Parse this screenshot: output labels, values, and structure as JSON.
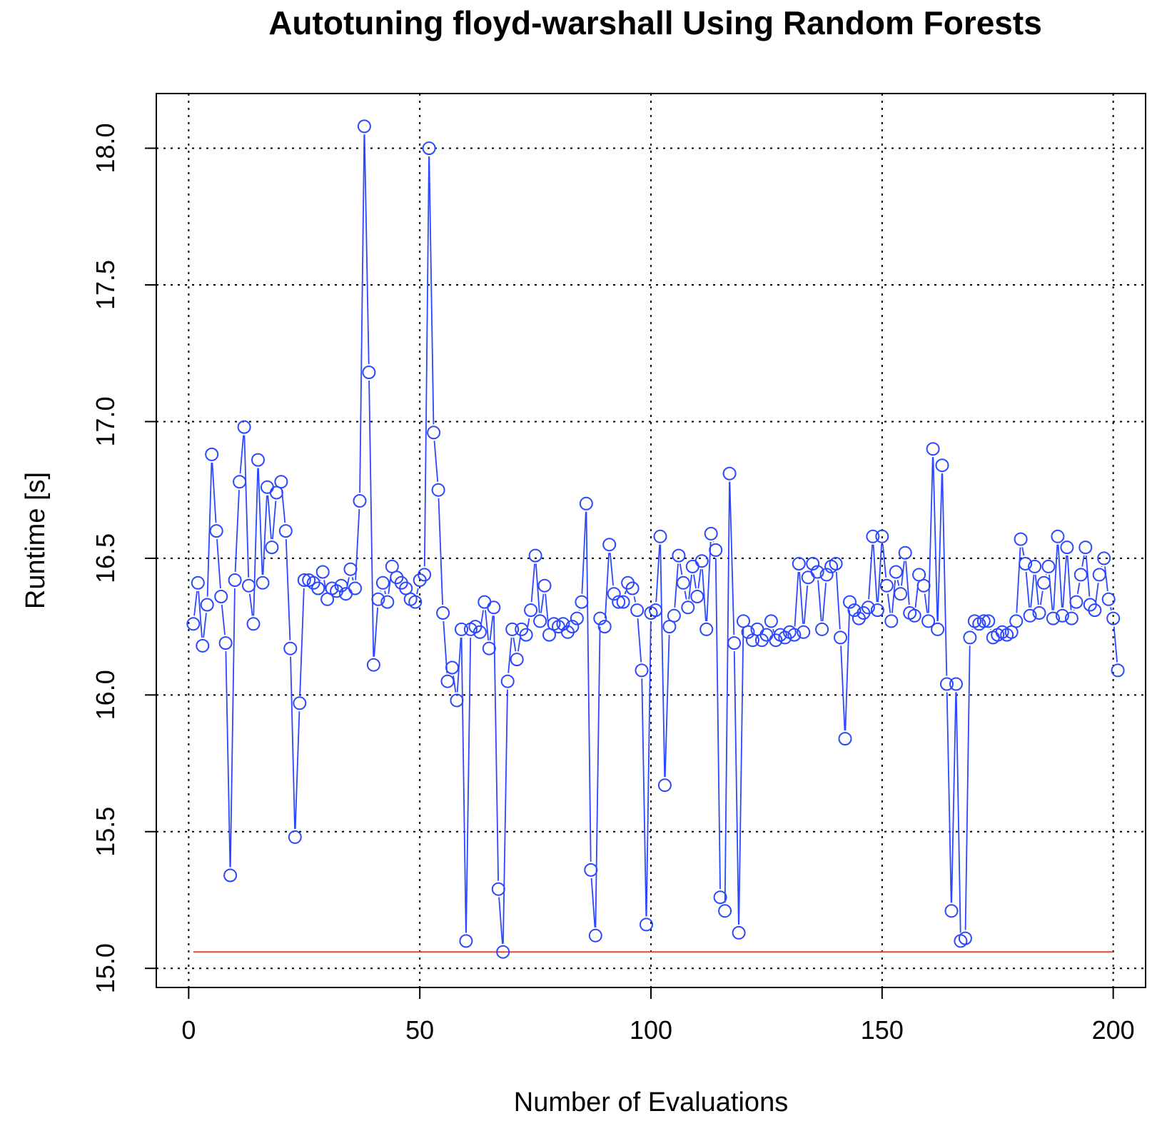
{
  "chart_data": {
    "type": "line",
    "title": "Autotuning floyd-warshall Using Random Forests",
    "xlabel": "Number of Evaluations",
    "ylabel": "Runtime [s]",
    "xlim": [
      -7,
      207
    ],
    "ylim": [
      14.93,
      18.2
    ],
    "x_ticks": [
      0,
      50,
      100,
      150,
      200
    ],
    "x_tick_labels": [
      "0",
      "50",
      "100",
      "150",
      "200"
    ],
    "y_ticks": [
      15.0,
      15.5,
      16.0,
      16.5,
      17.0,
      17.5,
      18.0
    ],
    "y_tick_labels": [
      "15.0",
      "15.5",
      "16.0",
      "16.5",
      "17.0",
      "17.5",
      "18.0"
    ],
    "grid": true,
    "legend": "none",
    "series": [
      {
        "color": "#2b47ff",
        "marker": "circle-open",
        "line_style": "connected-gapped",
        "x_start": 1,
        "x_step": 1,
        "values": [
          16.26,
          16.41,
          16.18,
          16.33,
          16.88,
          16.6,
          16.36,
          16.19,
          15.34,
          16.42,
          16.78,
          16.98,
          16.4,
          16.26,
          16.86,
          16.41,
          16.76,
          16.54,
          16.74,
          16.78,
          16.6,
          16.17,
          15.48,
          15.97,
          16.42,
          16.42,
          16.41,
          16.39,
          16.45,
          16.35,
          16.39,
          16.38,
          16.4,
          16.37,
          16.46,
          16.39,
          16.71,
          18.08,
          17.18,
          16.11,
          16.35,
          16.41,
          16.34,
          16.47,
          16.43,
          16.41,
          16.39,
          16.35,
          16.34,
          16.42,
          16.44,
          18.0,
          16.96,
          16.75,
          16.3,
          16.05,
          16.1,
          15.98,
          16.24,
          15.1,
          16.24,
          16.25,
          16.23,
          16.34,
          16.17,
          16.32,
          15.29,
          15.06,
          16.05,
          16.24,
          16.13,
          16.24,
          16.22,
          16.31,
          16.51,
          16.27,
          16.4,
          16.22,
          16.26,
          16.25,
          16.26,
          16.23,
          16.25,
          16.28,
          16.34,
          16.7,
          15.36,
          15.12,
          16.28,
          16.25,
          16.55,
          16.37,
          16.34,
          16.34,
          16.41,
          16.39,
          16.31,
          16.09,
          15.16,
          16.3,
          16.31,
          16.58,
          15.67,
          16.25,
          16.29,
          16.51,
          16.41,
          16.32,
          16.47,
          16.36,
          16.49,
          16.24,
          16.59,
          16.53,
          15.26,
          15.21,
          16.81,
          16.19,
          15.13,
          16.27,
          16.23,
          16.2,
          16.24,
          16.2,
          16.22,
          16.27,
          16.2,
          16.22,
          16.21,
          16.23,
          16.22,
          16.48,
          16.23,
          16.43,
          16.48,
          16.45,
          16.24,
          16.44,
          16.47,
          16.48,
          16.21,
          15.84,
          16.34,
          16.31,
          16.28,
          16.3,
          16.32,
          16.58,
          16.31,
          16.58,
          16.4,
          16.27,
          16.45,
          16.37,
          16.52,
          16.3,
          16.29,
          16.44,
          16.4,
          16.27,
          16.9,
          16.24,
          16.84,
          16.04,
          15.21,
          16.04,
          15.1,
          15.11,
          16.21,
          16.27,
          16.26,
          16.27,
          16.27,
          16.21,
          16.22,
          16.23,
          16.22,
          16.23,
          16.27,
          16.57,
          16.48,
          16.29,
          16.47,
          16.3,
          16.41,
          16.47,
          16.28,
          16.58,
          16.29,
          16.54,
          16.28,
          16.34,
          16.44,
          16.54,
          16.33,
          16.31,
          16.44,
          16.5,
          16.35,
          16.28,
          16.09
        ]
      },
      {
        "color": "#f0412d",
        "marker": "none",
        "line_style": "solid",
        "x": [
          1,
          200
        ],
        "values": [
          15.06,
          15.06
        ]
      }
    ]
  }
}
